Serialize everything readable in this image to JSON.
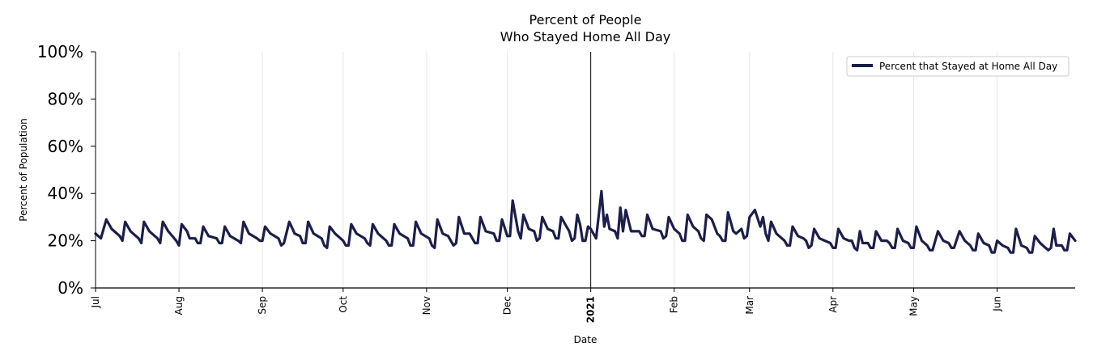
{
  "chart_data": {
    "type": "line",
    "title_lines": [
      "Percent of People",
      "Who Stayed Home All Day"
    ],
    "xlabel": "Date",
    "ylabel": "Percent of Population",
    "x_start": "2020-07-01",
    "x_end": "2021-06-30",
    "ylim": [
      0,
      100
    ],
    "yticks": [
      0,
      20,
      40,
      60,
      80,
      100
    ],
    "ytick_labels": [
      "0%",
      "20%",
      "40%",
      "60%",
      "80%",
      "100%"
    ],
    "xticks": [
      {
        "date": "2020-07-01",
        "label": "Jul"
      },
      {
        "date": "2020-08-01",
        "label": "Aug"
      },
      {
        "date": "2020-09-01",
        "label": "Sep"
      },
      {
        "date": "2020-10-01",
        "label": "Oct"
      },
      {
        "date": "2020-11-01",
        "label": "Nov"
      },
      {
        "date": "2020-12-01",
        "label": "Dec"
      },
      {
        "date": "2021-01-01",
        "label": "2021",
        "bold": true
      },
      {
        "date": "2021-02-01",
        "label": "Feb"
      },
      {
        "date": "2021-03-01",
        "label": "Mar"
      },
      {
        "date": "2021-04-01",
        "label": "Apr"
      },
      {
        "date": "2021-05-01",
        "label": "May"
      },
      {
        "date": "2021-06-01",
        "label": "Jun"
      }
    ],
    "vline_date": "2021-01-01",
    "grid": "vertical",
    "legend_position": "top-right",
    "series": [
      {
        "name": "Percent that Stayed at Home All Day",
        "color": "#1c1f4a",
        "points": [
          [
            "2020-07-01",
            23
          ],
          [
            "2020-07-03",
            21
          ],
          [
            "2020-07-05",
            29
          ],
          [
            "2020-07-07",
            25
          ],
          [
            "2020-07-10",
            22
          ],
          [
            "2020-07-11",
            20
          ],
          [
            "2020-07-12",
            28
          ],
          [
            "2020-07-14",
            24
          ],
          [
            "2020-07-17",
            21
          ],
          [
            "2020-07-18",
            19
          ],
          [
            "2020-07-19",
            28
          ],
          [
            "2020-07-21",
            24
          ],
          [
            "2020-07-24",
            21
          ],
          [
            "2020-07-25",
            19
          ],
          [
            "2020-07-26",
            28
          ],
          [
            "2020-07-28",
            24
          ],
          [
            "2020-07-31",
            20
          ],
          [
            "2020-08-01",
            18
          ],
          [
            "2020-08-02",
            27
          ],
          [
            "2020-08-04",
            24
          ],
          [
            "2020-08-05",
            21
          ],
          [
            "2020-08-07",
            21
          ],
          [
            "2020-08-08",
            19
          ],
          [
            "2020-08-09",
            19
          ],
          [
            "2020-08-10",
            26
          ],
          [
            "2020-08-12",
            22
          ],
          [
            "2020-08-15",
            21
          ],
          [
            "2020-08-16",
            19
          ],
          [
            "2020-08-17",
            19
          ],
          [
            "2020-08-18",
            26
          ],
          [
            "2020-08-20",
            22
          ],
          [
            "2020-08-23",
            20
          ],
          [
            "2020-08-24",
            19
          ],
          [
            "2020-08-25",
            28
          ],
          [
            "2020-08-27",
            23
          ],
          [
            "2020-08-30",
            21
          ],
          [
            "2020-08-31",
            20
          ],
          [
            "2020-09-01",
            20
          ],
          [
            "2020-09-02",
            26
          ],
          [
            "2020-09-04",
            23
          ],
          [
            "2020-09-07",
            21
          ],
          [
            "2020-09-08",
            18
          ],
          [
            "2020-09-09",
            19
          ],
          [
            "2020-09-11",
            28
          ],
          [
            "2020-09-13",
            23
          ],
          [
            "2020-09-15",
            22
          ],
          [
            "2020-09-16",
            19
          ],
          [
            "2020-09-17",
            19
          ],
          [
            "2020-09-18",
            28
          ],
          [
            "2020-09-20",
            23
          ],
          [
            "2020-09-23",
            21
          ],
          [
            "2020-09-24",
            18
          ],
          [
            "2020-09-25",
            17
          ],
          [
            "2020-09-26",
            26
          ],
          [
            "2020-09-28",
            23
          ],
          [
            "2020-10-01",
            20
          ],
          [
            "2020-10-02",
            18
          ],
          [
            "2020-10-03",
            18
          ],
          [
            "2020-10-04",
            27
          ],
          [
            "2020-10-06",
            23
          ],
          [
            "2020-10-09",
            21
          ],
          [
            "2020-10-10",
            19
          ],
          [
            "2020-10-11",
            18
          ],
          [
            "2020-10-12",
            27
          ],
          [
            "2020-10-14",
            23
          ],
          [
            "2020-10-17",
            20
          ],
          [
            "2020-10-18",
            18
          ],
          [
            "2020-10-19",
            18
          ],
          [
            "2020-10-20",
            27
          ],
          [
            "2020-10-22",
            23
          ],
          [
            "2020-10-25",
            21
          ],
          [
            "2020-10-26",
            18
          ],
          [
            "2020-10-27",
            18
          ],
          [
            "2020-10-28",
            28
          ],
          [
            "2020-10-30",
            23
          ],
          [
            "2020-11-02",
            21
          ],
          [
            "2020-11-03",
            18
          ],
          [
            "2020-11-04",
            17
          ],
          [
            "2020-11-05",
            29
          ],
          [
            "2020-11-07",
            23
          ],
          [
            "2020-11-09",
            22
          ],
          [
            "2020-11-11",
            18
          ],
          [
            "2020-11-12",
            19
          ],
          [
            "2020-11-13",
            30
          ],
          [
            "2020-11-15",
            23
          ],
          [
            "2020-11-17",
            23
          ],
          [
            "2020-11-19",
            19
          ],
          [
            "2020-11-20",
            19
          ],
          [
            "2020-11-21",
            30
          ],
          [
            "2020-11-23",
            24
          ],
          [
            "2020-11-26",
            23
          ],
          [
            "2020-11-27",
            20
          ],
          [
            "2020-11-28",
            20
          ],
          [
            "2020-11-29",
            29
          ],
          [
            "2020-12-01",
            22
          ],
          [
            "2020-12-02",
            22
          ],
          [
            "2020-12-03",
            37
          ],
          [
            "2020-12-05",
            24
          ],
          [
            "2020-12-06",
            21
          ],
          [
            "2020-12-07",
            31
          ],
          [
            "2020-12-09",
            25
          ],
          [
            "2020-12-11",
            24
          ],
          [
            "2020-12-12",
            20
          ],
          [
            "2020-12-13",
            21
          ],
          [
            "2020-12-14",
            30
          ],
          [
            "2020-12-16",
            25
          ],
          [
            "2020-12-18",
            24
          ],
          [
            "2020-12-19",
            21
          ],
          [
            "2020-12-20",
            21
          ],
          [
            "2020-12-21",
            30
          ],
          [
            "2020-12-23",
            26
          ],
          [
            "2020-12-24",
            24
          ],
          [
            "2020-12-25",
            20
          ],
          [
            "2020-12-26",
            21
          ],
          [
            "2020-12-27",
            31
          ],
          [
            "2020-12-28",
            27
          ],
          [
            "2020-12-29",
            20
          ],
          [
            "2020-12-30",
            20
          ],
          [
            "2020-12-31",
            26
          ],
          [
            "2021-01-01",
            25
          ],
          [
            "2021-01-03",
            21
          ],
          [
            "2021-01-05",
            41
          ],
          [
            "2021-01-06",
            26
          ],
          [
            "2021-01-07",
            31
          ],
          [
            "2021-01-08",
            25
          ],
          [
            "2021-01-10",
            24
          ],
          [
            "2021-01-11",
            21
          ],
          [
            "2021-01-12",
            34
          ],
          [
            "2021-01-13",
            24
          ],
          [
            "2021-01-14",
            33
          ],
          [
            "2021-01-16",
            24
          ],
          [
            "2021-01-19",
            24
          ],
          [
            "2021-01-20",
            22
          ],
          [
            "2021-01-21",
            22
          ],
          [
            "2021-01-22",
            31
          ],
          [
            "2021-01-24",
            25
          ],
          [
            "2021-01-27",
            24
          ],
          [
            "2021-01-28",
            21
          ],
          [
            "2021-01-29",
            22
          ],
          [
            "2021-01-30",
            30
          ],
          [
            "2021-02-01",
            25
          ],
          [
            "2021-02-03",
            23
          ],
          [
            "2021-02-04",
            20
          ],
          [
            "2021-02-05",
            20
          ],
          [
            "2021-02-06",
            31
          ],
          [
            "2021-02-08",
            26
          ],
          [
            "2021-02-10",
            24
          ],
          [
            "2021-02-11",
            21
          ],
          [
            "2021-02-12",
            20
          ],
          [
            "2021-02-13",
            31
          ],
          [
            "2021-02-15",
            29
          ],
          [
            "2021-02-17",
            23
          ],
          [
            "2021-02-18",
            22
          ],
          [
            "2021-02-19",
            20
          ],
          [
            "2021-02-20",
            20
          ],
          [
            "2021-02-21",
            32
          ],
          [
            "2021-02-23",
            24
          ],
          [
            "2021-02-24",
            23
          ],
          [
            "2021-02-26",
            25
          ],
          [
            "2021-02-27",
            21
          ],
          [
            "2021-02-28",
            22
          ],
          [
            "2021-03-01",
            30
          ],
          [
            "2021-03-03",
            33
          ],
          [
            "2021-03-05",
            26
          ],
          [
            "2021-03-06",
            30
          ],
          [
            "2021-03-07",
            23
          ],
          [
            "2021-03-08",
            20
          ],
          [
            "2021-03-09",
            28
          ],
          [
            "2021-03-11",
            23
          ],
          [
            "2021-03-13",
            21
          ],
          [
            "2021-03-14",
            20
          ],
          [
            "2021-03-15",
            18
          ],
          [
            "2021-03-16",
            18
          ],
          [
            "2021-03-17",
            26
          ],
          [
            "2021-03-19",
            22
          ],
          [
            "2021-03-21",
            21
          ],
          [
            "2021-03-22",
            20
          ],
          [
            "2021-03-23",
            17
          ],
          [
            "2021-03-24",
            18
          ],
          [
            "2021-03-25",
            25
          ],
          [
            "2021-03-27",
            21
          ],
          [
            "2021-03-29",
            20
          ],
          [
            "2021-03-31",
            19
          ],
          [
            "2021-04-01",
            17
          ],
          [
            "2021-04-02",
            17
          ],
          [
            "2021-04-03",
            25
          ],
          [
            "2021-04-05",
            21
          ],
          [
            "2021-04-07",
            20
          ],
          [
            "2021-04-08",
            20
          ],
          [
            "2021-04-09",
            17
          ],
          [
            "2021-04-10",
            16
          ],
          [
            "2021-04-11",
            24
          ],
          [
            "2021-04-12",
            19
          ],
          [
            "2021-04-14",
            19
          ],
          [
            "2021-04-15",
            17
          ],
          [
            "2021-04-16",
            17
          ],
          [
            "2021-04-17",
            24
          ],
          [
            "2021-04-19",
            20
          ],
          [
            "2021-04-21",
            20
          ],
          [
            "2021-04-22",
            19
          ],
          [
            "2021-04-23",
            17
          ],
          [
            "2021-04-24",
            17
          ],
          [
            "2021-04-25",
            25
          ],
          [
            "2021-04-27",
            20
          ],
          [
            "2021-04-29",
            19
          ],
          [
            "2021-04-30",
            17
          ],
          [
            "2021-05-01",
            17
          ],
          [
            "2021-05-02",
            26
          ],
          [
            "2021-05-04",
            20
          ],
          [
            "2021-05-06",
            18
          ],
          [
            "2021-05-07",
            16
          ],
          [
            "2021-05-08",
            16
          ],
          [
            "2021-05-10",
            24
          ],
          [
            "2021-05-12",
            20
          ],
          [
            "2021-05-14",
            19
          ],
          [
            "2021-05-15",
            17
          ],
          [
            "2021-05-16",
            17
          ],
          [
            "2021-05-18",
            24
          ],
          [
            "2021-05-20",
            20
          ],
          [
            "2021-05-22",
            18
          ],
          [
            "2021-05-23",
            16
          ],
          [
            "2021-05-24",
            16
          ],
          [
            "2021-05-25",
            23
          ],
          [
            "2021-05-27",
            19
          ],
          [
            "2021-05-29",
            18
          ],
          [
            "2021-05-30",
            15
          ],
          [
            "2021-05-31",
            15
          ],
          [
            "2021-06-01",
            20
          ],
          [
            "2021-06-03",
            18
          ],
          [
            "2021-06-05",
            17
          ],
          [
            "2021-06-06",
            15
          ],
          [
            "2021-06-07",
            15
          ],
          [
            "2021-06-08",
            25
          ],
          [
            "2021-06-10",
            18
          ],
          [
            "2021-06-12",
            17
          ],
          [
            "2021-06-13",
            15
          ],
          [
            "2021-06-14",
            15
          ],
          [
            "2021-06-15",
            22
          ],
          [
            "2021-06-17",
            19
          ],
          [
            "2021-06-19",
            17
          ],
          [
            "2021-06-20",
            16
          ],
          [
            "2021-06-21",
            17
          ],
          [
            "2021-06-22",
            25
          ],
          [
            "2021-06-23",
            18
          ],
          [
            "2021-06-25",
            18
          ],
          [
            "2021-06-26",
            16
          ],
          [
            "2021-06-27",
            16
          ],
          [
            "2021-06-28",
            23
          ],
          [
            "2021-06-30",
            20
          ]
        ]
      }
    ]
  }
}
